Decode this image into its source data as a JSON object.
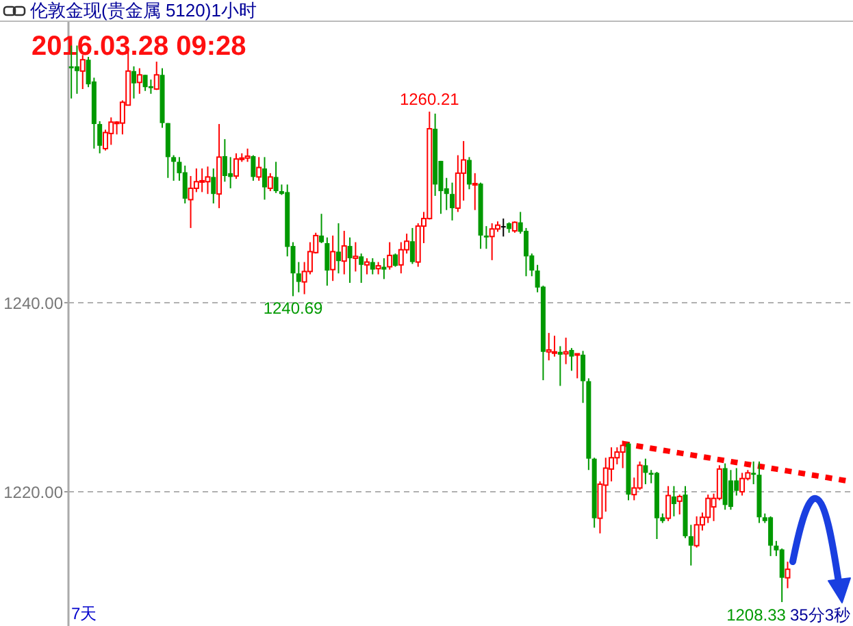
{
  "chart_data": {
    "type": "candlestick",
    "title": "伦敦金现(贵金属 5120)1小时",
    "subtitle": "2016.03.28 09:28",
    "annotations": [
      "7天",
      "35分3秒",
      {
        "text": "1260.21",
        "y": 1260.21
      },
      {
        "text": "1240.69",
        "y": 1240.69
      },
      "1208.33"
    ],
    "categories": [
      null,
      null,
      null,
      null,
      null,
      null,
      null,
      null,
      null,
      null,
      null,
      null,
      null,
      null,
      null,
      null,
      null,
      null,
      null,
      null,
      null,
      null,
      null,
      null,
      null,
      null,
      null,
      null,
      null,
      null,
      null,
      null,
      null,
      null,
      null,
      null,
      null,
      null,
      null,
      null,
      null,
      null,
      null,
      null,
      null,
      null,
      null,
      null,
      null,
      null,
      null,
      null,
      null,
      null,
      null,
      null,
      null,
      null,
      null,
      null,
      null,
      null,
      null,
      null,
      null,
      null,
      null,
      null,
      null,
      null,
      null,
      null,
      null,
      null,
      null,
      null,
      null,
      null,
      null,
      null,
      null,
      null,
      null,
      null,
      null,
      null,
      null,
      null,
      null,
      null,
      null,
      null,
      null,
      null,
      null,
      null,
      null,
      null,
      null,
      null,
      null,
      null,
      null,
      null,
      null,
      null,
      null,
      null,
      null,
      null,
      null,
      null,
      null,
      null,
      null,
      null,
      null,
      null,
      null,
      null,
      null,
      null,
      null,
      null,
      null,
      null,
      null,
      null,
      null,
      null,
      null,
      null,
      null,
      null,
      null,
      null,
      null,
      null
    ],
    "ohlc": [
      [
        1265.0,
        1267.2,
        1261.6,
        1264.8
      ],
      [
        1265.0,
        1267.2,
        1262.1,
        1264.5
      ],
      [
        1264.5,
        1266.2,
        1262.6,
        1265.7
      ],
      [
        1265.7,
        1266.0,
        1262.8,
        1263.1
      ],
      [
        1263.4,
        1263.8,
        1256.3,
        1258.9
      ],
      [
        1258.9,
        1259.2,
        1255.8,
        1256.6
      ],
      [
        1256.3,
        1258.3,
        1256.1,
        1258.0
      ],
      [
        1257.9,
        1259.6,
        1256.7,
        1259.1
      ],
      [
        1259.0,
        1259.2,
        1257.8,
        1259.1
      ],
      [
        1259.0,
        1261.4,
        1257.8,
        1261.2
      ],
      [
        1260.9,
        1266.5,
        1260.9,
        1264.5
      ],
      [
        1264.5,
        1265.0,
        1261.6,
        1263.2
      ],
      [
        1263.3,
        1264.8,
        1262.1,
        1264.1
      ],
      [
        1264.1,
        1264.1,
        1262.4,
        1262.8
      ],
      [
        1262.9,
        1263.6,
        1262.1,
        1262.7
      ],
      [
        1262.6,
        1265.5,
        1262.5,
        1264.1
      ],
      [
        1264.1,
        1264.8,
        1258.5,
        1259.0
      ],
      [
        1259.0,
        1259.0,
        1253.2,
        1255.4
      ],
      [
        1255.4,
        1255.6,
        1252.9,
        1254.9
      ],
      [
        1254.9,
        1255.4,
        1252.9,
        1253.7
      ],
      [
        1253.8,
        1254.5,
        1250.5,
        1251.0
      ],
      [
        1250.9,
        1253.4,
        1247.9,
        1252.1
      ],
      [
        1252.1,
        1254.2,
        1251.7,
        1252.8
      ],
      [
        1252.8,
        1254.2,
        1251.7,
        1252.9
      ],
      [
        1252.8,
        1254.4,
        1251.5,
        1253.3
      ],
      [
        1253.3,
        1254.2,
        1250.5,
        1251.5
      ],
      [
        1251.5,
        1258.9,
        1250.0,
        1255.4
      ],
      [
        1255.5,
        1257.3,
        1252.8,
        1253.4
      ],
      [
        1253.7,
        1255.4,
        1252.1,
        1253.3
      ],
      [
        1253.4,
        1255.8,
        1253.1,
        1255.2
      ],
      [
        1255.2,
        1255.8,
        1254.9,
        1255.3
      ],
      [
        1255.3,
        1256.3,
        1254.9,
        1255.5
      ],
      [
        1255.5,
        1255.6,
        1252.9,
        1253.3
      ],
      [
        1253.3,
        1255.4,
        1252.9,
        1254.3
      ],
      [
        1254.2,
        1255.4,
        1250.9,
        1252.2
      ],
      [
        1252.1,
        1253.7,
        1251.8,
        1253.3
      ],
      [
        1253.3,
        1254.9,
        1251.6,
        1251.8
      ],
      [
        1251.8,
        1252.5,
        1251.4,
        1251.5
      ],
      [
        1251.7,
        1252.5,
        1244.9,
        1245.9
      ],
      [
        1246.0,
        1246.4,
        1240.69,
        1243.1
      ],
      [
        1243.1,
        1244.3,
        1241.1,
        1242.2
      ],
      [
        1242.2,
        1244.3,
        1240.9,
        1243.3
      ],
      [
        1243.3,
        1246.4,
        1243.0,
        1245.4
      ],
      [
        1245.3,
        1247.4,
        1245.2,
        1247.1
      ],
      [
        1247.1,
        1249.4,
        1246.3,
        1246.4
      ],
      [
        1246.3,
        1246.9,
        1241.8,
        1243.4
      ],
      [
        1243.5,
        1247.1,
        1242.3,
        1245.4
      ],
      [
        1245.4,
        1248.4,
        1243.1,
        1244.4
      ],
      [
        1244.4,
        1247.6,
        1243.0,
        1246.0
      ],
      [
        1246.0,
        1246.9,
        1242.1,
        1244.7
      ],
      [
        1244.7,
        1246.4,
        1243.3,
        1244.9
      ],
      [
        1244.9,
        1245.2,
        1242.1,
        1244.0
      ],
      [
        1244.0,
        1244.7,
        1243.0,
        1244.3
      ],
      [
        1244.3,
        1244.7,
        1243.0,
        1243.5
      ],
      [
        1243.6,
        1244.3,
        1243.0,
        1243.9
      ],
      [
        1243.8,
        1244.7,
        1242.5,
        1243.5
      ],
      [
        1243.8,
        1246.4,
        1243.5,
        1245.0
      ],
      [
        1245.1,
        1245.2,
        1243.8,
        1243.9
      ],
      [
        1244.0,
        1246.4,
        1243.1,
        1245.6
      ],
      [
        1245.6,
        1247.3,
        1245.2,
        1246.5
      ],
      [
        1246.5,
        1247.9,
        1244.1,
        1244.3
      ],
      [
        1244.3,
        1248.4,
        1243.8,
        1248.1
      ],
      [
        1248.1,
        1249.6,
        1246.3,
        1248.9
      ],
      [
        1248.9,
        1260.21,
        1248.8,
        1258.4
      ],
      [
        1258.4,
        1260.0,
        1251.3,
        1252.5
      ],
      [
        1255.0,
        1255.0,
        1249.4,
        1251.8
      ],
      [
        1252.1,
        1253.2,
        1249.8,
        1251.5
      ],
      [
        1251.5,
        1252.7,
        1248.7,
        1250.0
      ],
      [
        1250.0,
        1255.6,
        1249.6,
        1253.7
      ],
      [
        1253.7,
        1257.1,
        1250.8,
        1255.1
      ],
      [
        1255.1,
        1255.4,
        1252.0,
        1252.5
      ],
      [
        1252.5,
        1253.7,
        1249.8,
        1252.6
      ],
      [
        1252.6,
        1252.7,
        1245.7,
        1247.1
      ],
      [
        1247.1,
        1248.1,
        1245.7,
        1246.9
      ],
      [
        1247.0,
        1248.4,
        1244.5,
        1247.8
      ],
      [
        1247.8,
        1248.6,
        1247.5,
        1248.2
      ],
      [
        1248.1,
        1248.9,
        1247.0,
        1248.1
      ],
      [
        1248.4,
        1248.5,
        1247.4,
        1247.8
      ],
      [
        1247.6,
        1248.6,
        1247.4,
        1248.5
      ],
      [
        1248.5,
        1249.6,
        1247.3,
        1247.5
      ],
      [
        1247.6,
        1247.9,
        1242.8,
        1244.9
      ],
      [
        1245.0,
        1245.2,
        1242.8,
        1243.4
      ],
      [
        1243.4,
        1244.0,
        1241.1,
        1241.6
      ],
      [
        1241.7,
        1241.8,
        1231.8,
        1234.8
      ],
      [
        1234.8,
        1236.8,
        1233.9,
        1235.0
      ],
      [
        1234.7,
        1236.5,
        1234.3,
        1234.8
      ],
      [
        1234.8,
        1235.4,
        1231.2,
        1234.5
      ],
      [
        1234.6,
        1236.3,
        1233.5,
        1234.8
      ],
      [
        1235.0,
        1235.2,
        1232.8,
        1234.3
      ],
      [
        1234.5,
        1234.6,
        1232.0,
        1234.6
      ],
      [
        1234.5,
        1234.9,
        1229.4,
        1231.7
      ],
      [
        1231.7,
        1232.0,
        1222.3,
        1223.5
      ],
      [
        1223.5,
        1223.6,
        1216.2,
        1217.2
      ],
      [
        1217.2,
        1221.1,
        1215.6,
        1220.8
      ],
      [
        1220.7,
        1223.6,
        1217.9,
        1222.5
      ],
      [
        1222.4,
        1224.7,
        1221.1,
        1223.6
      ],
      [
        1223.6,
        1224.7,
        1222.9,
        1224.2
      ],
      [
        1224.2,
        1225.4,
        1222.5,
        1224.9
      ],
      [
        1225.1,
        1225.2,
        1219.1,
        1219.7
      ],
      [
        1219.7,
        1221.5,
        1219.1,
        1220.4
      ],
      [
        1220.4,
        1223.2,
        1220.2,
        1222.8
      ],
      [
        1222.8,
        1223.5,
        1220.8,
        1222.0
      ],
      [
        1222.0,
        1222.3,
        1220.9,
        1221.8
      ],
      [
        1222.0,
        1222.1,
        1215.0,
        1217.2
      ],
      [
        1217.3,
        1217.7,
        1216.7,
        1216.9
      ],
      [
        1217.2,
        1220.6,
        1216.9,
        1219.6
      ],
      [
        1219.5,
        1220.6,
        1217.4,
        1218.7
      ],
      [
        1219.0,
        1219.7,
        1217.6,
        1219.5
      ],
      [
        1219.7,
        1220.6,
        1215.1,
        1215.3
      ],
      [
        1215.3,
        1216.5,
        1212.2,
        1214.3
      ],
      [
        1214.3,
        1217.4,
        1214.1,
        1216.5
      ],
      [
        1216.5,
        1217.8,
        1215.9,
        1217.3
      ],
      [
        1217.3,
        1219.7,
        1216.7,
        1219.3
      ],
      [
        1218.4,
        1219.8,
        1216.9,
        1219.3
      ],
      [
        1219.3,
        1222.8,
        1219.1,
        1222.4
      ],
      [
        1222.5,
        1223.0,
        1218.1,
        1218.6
      ],
      [
        1221.2,
        1222.3,
        1218.1,
        1218.4
      ],
      [
        1221.2,
        1222.5,
        1219.6,
        1220.1
      ],
      [
        1220.0,
        1222.0,
        1219.6,
        1221.4
      ],
      [
        1221.4,
        1222.3,
        1221.2,
        1222.0
      ],
      [
        1222.0,
        1223.2,
        1220.8,
        1221.8
      ],
      [
        1221.8,
        1223.2,
        1216.7,
        1217.3
      ],
      [
        1217.3,
        1217.7,
        1216.7,
        1216.9
      ],
      [
        1217.3,
        1217.4,
        1213.2,
        1214.3
      ],
      [
        1214.3,
        1214.8,
        1213.2,
        1213.8
      ],
      [
        1213.9,
        1214.0,
        1208.33,
        1210.9
      ],
      [
        1210.9,
        1212.6,
        1209.8,
        1211.8
      ],
      null,
      null,
      null,
      null,
      null,
      null,
      null,
      null,
      null,
      null,
      null
    ],
    "colors": [
      "#009900",
      "#009900",
      "#ff0000",
      "#009900",
      "#009900",
      "#009900",
      "#ff0000",
      "#ff0000",
      "#ff0000",
      "#ff0000",
      "#ff0000",
      "#009900",
      "#ff0000",
      "#009900",
      "#009900",
      "#ff0000",
      "#009900",
      "#009900",
      "#009900",
      "#009900",
      "#009900",
      "#ff0000",
      "#ff0000",
      "#ff0000",
      "#ff0000",
      "#009900",
      "#ff0000",
      "#009900",
      "#009900",
      "#ff0000",
      "#ff0000",
      "#ff0000",
      "#009900",
      "#ff0000",
      "#009900",
      "#ff0000",
      "#009900",
      "#009900",
      "#009900",
      "#009900",
      "#009900",
      "#ff0000",
      "#ff0000",
      "#ff0000",
      "#009900",
      "#009900",
      "#ff0000",
      "#009900",
      "#ff0000",
      "#009900",
      "#ff0000",
      "#009900",
      "#ff0000",
      "#009900",
      "#ff0000",
      "#009900",
      "#ff0000",
      "#009900",
      "#ff0000",
      "#ff0000",
      "#009900",
      "#ff0000",
      "#ff0000",
      "#ff0000",
      "#009900",
      "#009900",
      "#009900",
      "#009900",
      "#ff0000",
      "#ff0000",
      "#009900",
      "#ff0000",
      "#009900",
      "#009900",
      "#ff0000",
      "#ff0000",
      "#000000",
      "#009900",
      "#ff0000",
      "#009900",
      "#009900",
      "#009900",
      "#009900",
      "#009900",
      "#ff0000",
      "#ff0000",
      "#009900",
      "#ff0000",
      "#009900",
      "#ff0000",
      "#009900",
      "#009900",
      "#009900",
      "#ff0000",
      "#ff0000",
      "#ff0000",
      "#ff0000",
      "#ff0000",
      "#009900",
      "#ff0000",
      "#ff0000",
      "#009900",
      "#009900",
      "#009900",
      "#009900",
      "#ff0000",
      "#009900",
      "#ff0000",
      "#009900",
      "#009900",
      "#ff0000",
      "#ff0000",
      "#ff0000",
      "#ff0000",
      "#ff0000",
      "#009900",
      "#009900",
      "#009900",
      "#ff0000",
      "#ff0000",
      "#009900",
      "#009900",
      "#009900",
      "#009900",
      "#009900",
      "#009900",
      "#ff0000",
      null,
      null,
      null,
      null,
      null,
      null,
      null,
      null,
      null,
      null,
      null
    ],
    "series": [
      {
        "type": "line",
        "values": [
          null,
          null,
          null,
          null,
          null,
          null,
          null,
          null,
          null,
          null,
          null,
          null,
          null,
          null,
          null,
          null,
          null,
          null,
          null,
          null,
          null,
          null,
          null,
          null,
          null,
          null,
          null,
          null,
          null,
          null,
          null,
          null,
          null,
          null,
          null,
          null,
          null,
          null,
          null,
          null,
          null,
          null,
          null,
          null,
          null,
          null,
          null,
          null,
          null,
          null,
          null,
          null,
          null,
          null,
          null,
          null,
          null,
          null,
          null,
          null,
          null,
          null,
          null,
          null,
          null,
          null,
          null,
          null,
          null,
          null,
          null,
          null,
          null,
          null,
          null,
          null,
          null,
          null,
          null,
          null,
          null,
          null,
          null,
          null,
          null,
          null,
          null,
          null,
          null,
          null,
          null,
          null,
          null,
          null,
          null,
          null,
          null,
          1225.1,
          1225.0,
          1224.9,
          1224.8,
          1224.7,
          1224.6,
          1224.5,
          1224.4,
          1224.3,
          1224.2,
          1224.1,
          1224.0,
          1223.9,
          1223.8,
          1223.7,
          1223.6,
          1223.5,
          1223.4,
          1223.3,
          1223.2,
          1223.1,
          1223.0,
          1222.9,
          1222.8,
          1222.7,
          1222.6,
          1222.5,
          1222.4,
          1222.3,
          1222.2,
          1222.1,
          1222.0,
          1221.9,
          1221.8,
          1221.7,
          1221.6,
          1221.5,
          1221.4,
          1221.3,
          1221.2,
          1221.1
        ],
        "color": "#ff0000",
        "line_style": "dotted"
      }
    ],
    "ylim": [
      1205.8,
      1269.7
    ],
    "yticks": [
      {
        "value": 1220,
        "label": "1220.00"
      },
      {
        "value": 1240,
        "label": "1240.00"
      }
    ],
    "grid": "y"
  }
}
